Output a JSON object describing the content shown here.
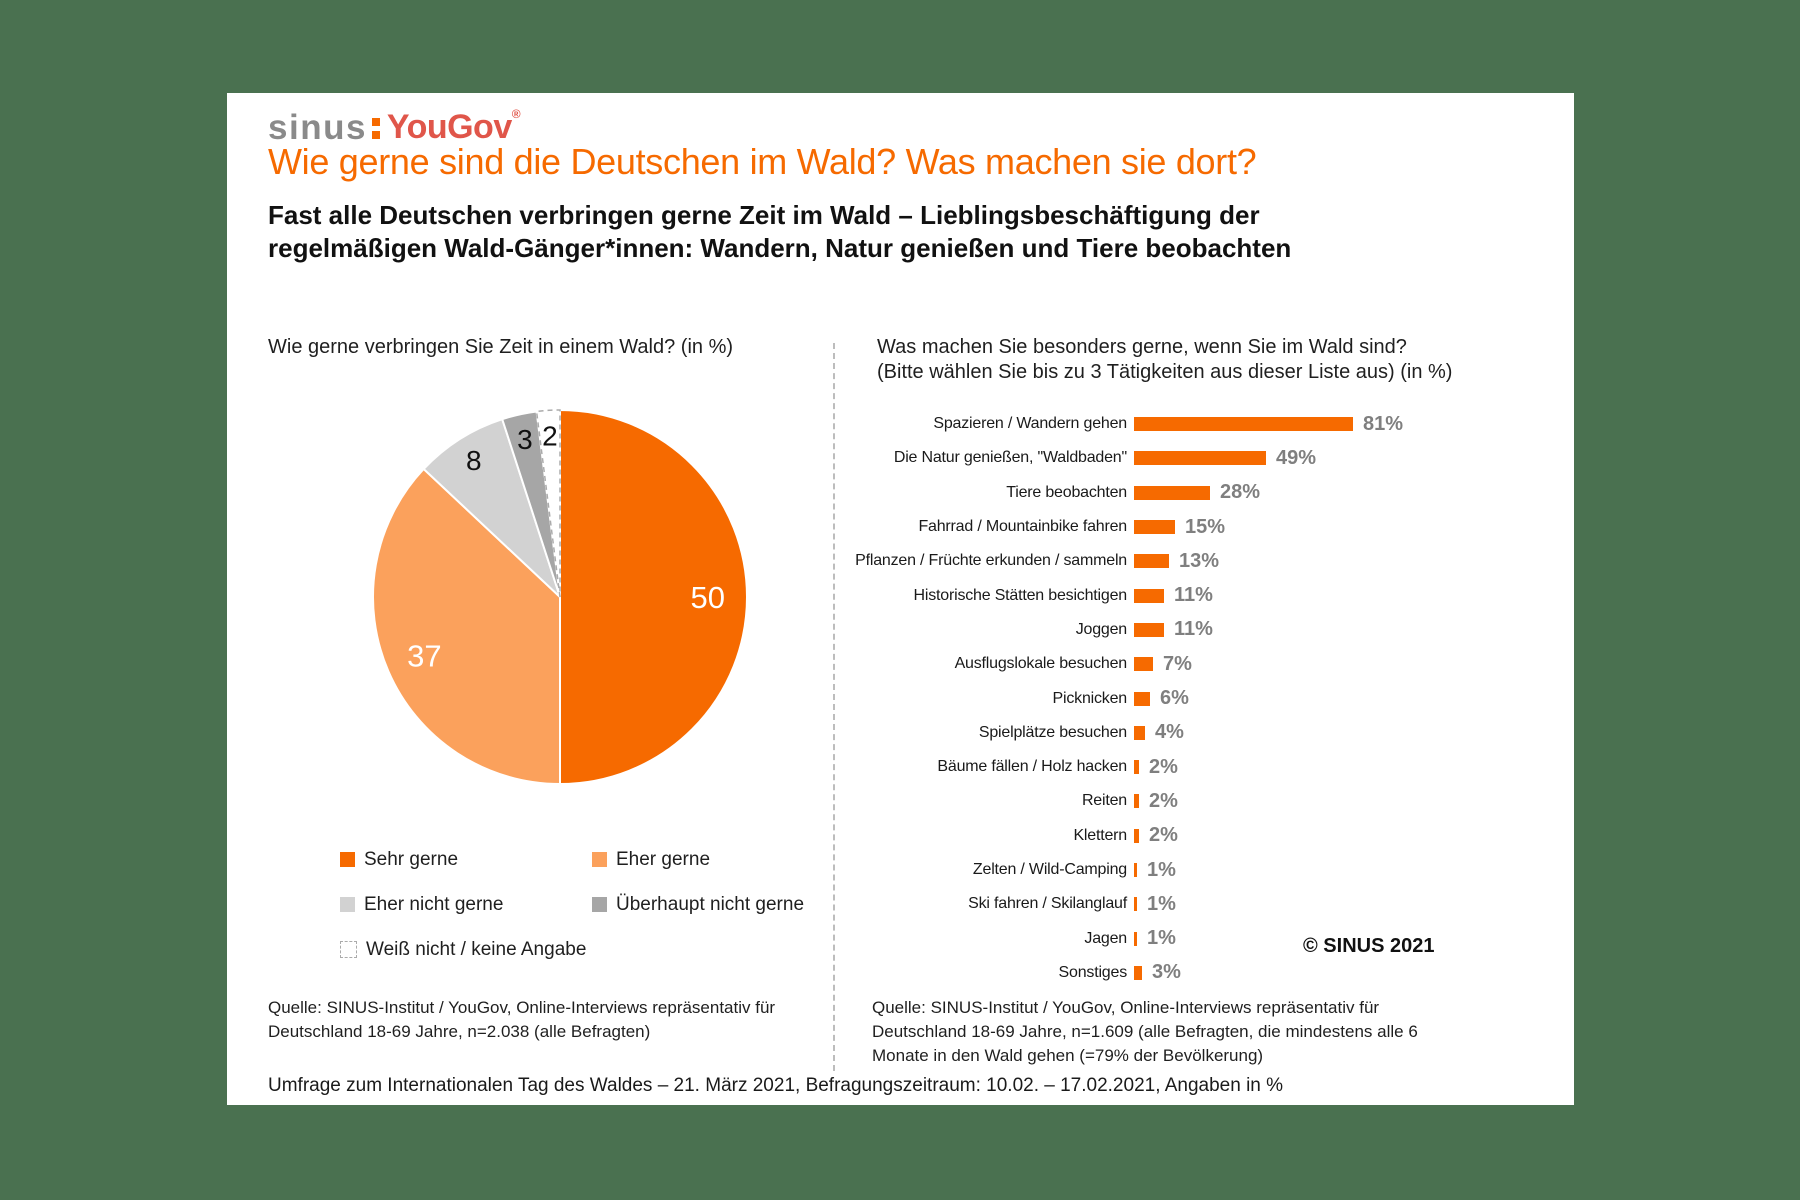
{
  "page": {
    "background_color": "#4a7150",
    "card_color": "#ffffff",
    "accent_orange": "#F66A00",
    "light_orange": "#FBA15C",
    "light_gray": "#D2D2D2",
    "dark_gray": "#A6A6A6",
    "value_label_gray": "#7F7F7F",
    "logo_gray": "#8A8A8A",
    "yougov_red": "#E0564A"
  },
  "logo": {
    "sinus": "sinus",
    "yougov": "YouGov",
    "registered": "®"
  },
  "header": {
    "title": "Wie gerne sind die Deutschen im Wald? Was machen sie dort?",
    "subtitle_line1": "Fast alle Deutschen verbringen gerne Zeit im Wald – Lieblingsbeschäftigung der",
    "subtitle_line2": "regelmäßigen Wald-Gänger*innen: Wandern, Natur genießen und Tiere beobachten"
  },
  "pie_section": {
    "question": "Wie gerne verbringen Sie Zeit in einem Wald? (in %)",
    "legend": [
      {
        "label": "Sehr gerne",
        "color": "#F66A00",
        "dashed": false
      },
      {
        "label": "Eher gerne",
        "color": "#FBA15C",
        "dashed": false
      },
      {
        "label": "Eher nicht gerne",
        "color": "#D2D2D2",
        "dashed": false
      },
      {
        "label": "Überhaupt nicht gerne",
        "color": "#A6A6A6",
        "dashed": false
      },
      {
        "label": "Weiß nicht / keine Angabe",
        "color": "#FFFFFF",
        "dashed": true
      }
    ],
    "source_line1": "Quelle: SINUS-Institut / YouGov, Online-Interviews repräsentativ für",
    "source_line2": "Deutschland 18-69 Jahre, n=2.038 (alle Befragten)"
  },
  "bar_section": {
    "question_line1": "Was machen Sie besonders gerne, wenn Sie im Wald sind?",
    "question_line2": "(Bitte wählen Sie bis zu 3 Tätigkeiten aus dieser Liste aus) (in %)",
    "copyright": "© SINUS 2021",
    "source_line1": "Quelle: SINUS-Institut / YouGov, Online-Interviews repräsentativ für",
    "source_line2": "Deutschland 18-69 Jahre, n=1.609 (alle Befragten, die mindestens alle 6",
    "source_line3": "Monate in den Wald gehen (=79% der Bevölkerung)"
  },
  "footer": {
    "text": "Umfrage zum Internationalen Tag des Waldes – 21. März 2021, Befragungszeitraum: 10.02. – 17.02.2021, Angaben in %"
  },
  "chart_data": [
    {
      "type": "pie",
      "title": "Wie gerne verbringen Sie Zeit in einem Wald? (in %)",
      "categories": [
        "Sehr gerne",
        "Eher gerne",
        "Eher nicht gerne",
        "Überhaupt nicht gerne",
        "Weiß nicht / keine Angabe"
      ],
      "values": [
        50,
        37,
        8,
        3,
        2
      ],
      "colors": [
        "#F66A00",
        "#FBA15C",
        "#D2D2D2",
        "#A6A6A6",
        "#FFFFFF"
      ],
      "label_colors": [
        "#FFFFFF",
        "#FFFFFF",
        "#111111",
        "#111111",
        "#111111"
      ],
      "dashed": [
        false,
        false,
        false,
        false,
        true
      ],
      "start_angle_deg": 0,
      "direction": "clockwise",
      "legend_position": "bottom"
    },
    {
      "type": "bar",
      "orientation": "horizontal",
      "title": "Was machen Sie besonders gerne, wenn Sie im Wald sind? (Bitte wählen Sie bis zu 3 Tätigkeiten aus dieser Liste aus) (in %)",
      "categories": [
        "Spazieren / Wandern gehen",
        "Die Natur genießen, \"Waldbaden\"",
        "Tiere beobachten",
        "Fahrrad / Mountainbike fahren",
        "Pflanzen / Früchte erkunden / sammeln",
        "Historische Stätten besichtigen",
        "Joggen",
        "Ausflugslokale besuchen",
        "Picknicken",
        "Spielplätze besuchen",
        "Bäume fällen / Holz hacken",
        "Reiten",
        "Klettern",
        "Zelten / Wild-Camping",
        "Ski fahren / Skilanglauf",
        "Jagen",
        "Sonstiges"
      ],
      "values": [
        81,
        49,
        28,
        15,
        13,
        11,
        11,
        7,
        6,
        4,
        2,
        2,
        2,
        1,
        1,
        1,
        3
      ],
      "value_suffix": "%",
      "bar_color": "#F66A00",
      "xlim": [
        0,
        100
      ],
      "axis_visible": false,
      "grid": false
    }
  ]
}
